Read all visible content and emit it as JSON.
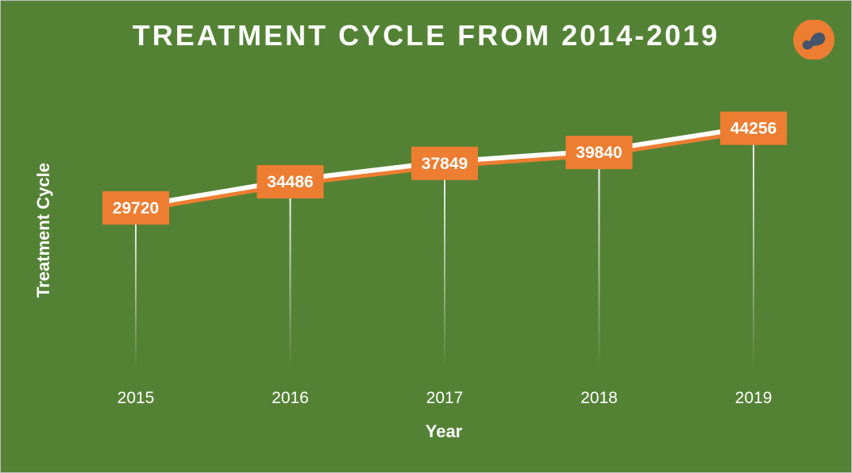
{
  "chart_data": {
    "type": "line",
    "title": "TREATMENT CYCLE FROM 2014-2019",
    "xlabel": "Year",
    "ylabel": "Treatment Cycle",
    "categories": [
      "2015",
      "2016",
      "2017",
      "2018",
      "2019"
    ],
    "values": [
      29720,
      34486,
      37849,
      39840,
      44256
    ],
    "data_labels": [
      "29720",
      "34486",
      "37849",
      "39840",
      "44256"
    ],
    "ylim": [
      0,
      50000
    ],
    "grid": false,
    "legend": "none",
    "drop_lines": true
  },
  "colors": {
    "background": "#548235",
    "line": "#ffffff",
    "line_shadow": "#ed7d31",
    "label_box": "#ed7d31",
    "text": "#ffffff",
    "logo_circle": "#ed7d31",
    "logo_mark": "#44546a"
  },
  "logo": {
    "icon": "orange-circle-logo-icon"
  }
}
